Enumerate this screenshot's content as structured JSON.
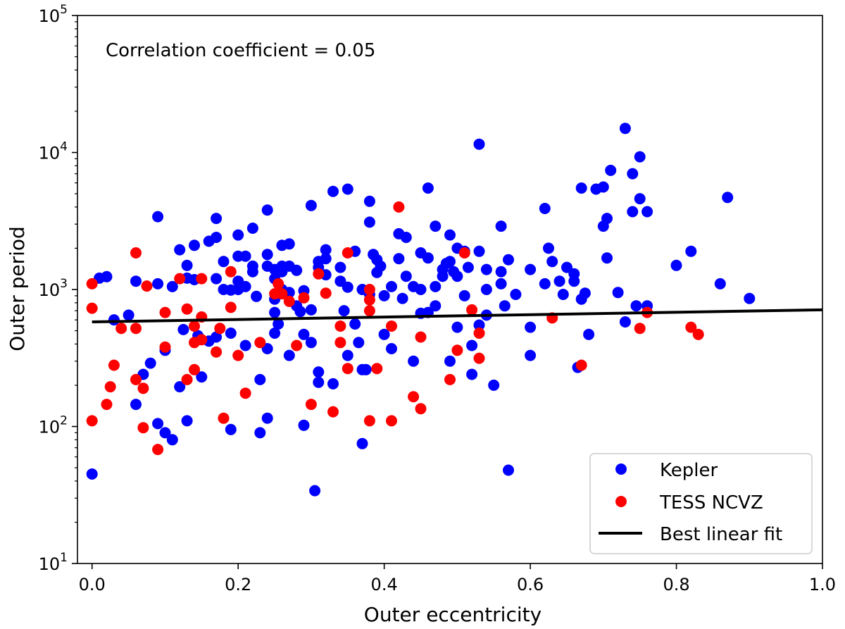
{
  "chart_data": {
    "type": "scatter",
    "title": "",
    "xlabel": "Outer eccentricity",
    "ylabel": "Outer period",
    "xlim": [
      -0.02,
      1.0
    ],
    "ylim": [
      10,
      100000
    ],
    "yscale": "log",
    "x_ticks": [
      0.0,
      0.2,
      0.4,
      0.6,
      0.8,
      1.0
    ],
    "x_tick_labels": [
      "0.0",
      "0.2",
      "0.4",
      "0.6",
      "0.8",
      "1.0"
    ],
    "y_ticks": [
      10,
      100,
      1000,
      10000,
      100000
    ],
    "y_tick_labels": [
      {
        "base": "10",
        "exp": "1"
      },
      {
        "base": "10",
        "exp": "2"
      },
      {
        "base": "10",
        "exp": "3"
      },
      {
        "base": "10",
        "exp": "4"
      },
      {
        "base": "10",
        "exp": "5"
      }
    ],
    "grid": false,
    "annotation": "Correlation coefficient = 0.05",
    "legend": {
      "placement": "lower-right",
      "entries": [
        "Kepler",
        "TESS NCVZ",
        "Best linear fit"
      ]
    },
    "colors": {
      "kepler": "#0000ff",
      "tess": "#ff0000",
      "fit": "#000000"
    },
    "series": [
      {
        "name": "Kepler",
        "marker": "circle",
        "points": [
          [
            0.0,
            45
          ],
          [
            0.01,
            1210
          ],
          [
            0.02,
            1240
          ],
          [
            0.03,
            600
          ],
          [
            0.05,
            650
          ],
          [
            0.06,
            1150
          ],
          [
            0.06,
            145
          ],
          [
            0.07,
            240
          ],
          [
            0.08,
            290
          ],
          [
            0.09,
            3400
          ],
          [
            0.09,
            1100
          ],
          [
            0.09,
            105
          ],
          [
            0.1,
            360
          ],
          [
            0.1,
            90
          ],
          [
            0.11,
            80
          ],
          [
            0.11,
            1050
          ],
          [
            0.12,
            1950
          ],
          [
            0.12,
            195
          ],
          [
            0.125,
            510
          ],
          [
            0.13,
            1500
          ],
          [
            0.13,
            1210
          ],
          [
            0.13,
            110
          ],
          [
            0.14,
            2100
          ],
          [
            0.14,
            1180
          ],
          [
            0.145,
            460
          ],
          [
            0.15,
            230
          ],
          [
            0.16,
            2250
          ],
          [
            0.16,
            420
          ],
          [
            0.17,
            3300
          ],
          [
            0.17,
            2400
          ],
          [
            0.17,
            1200
          ],
          [
            0.17,
            450
          ],
          [
            0.18,
            1600
          ],
          [
            0.18,
            1000
          ],
          [
            0.19,
            990
          ],
          [
            0.19,
            480
          ],
          [
            0.19,
            95
          ],
          [
            0.2,
            2500
          ],
          [
            0.2,
            1750
          ],
          [
            0.2,
            1150
          ],
          [
            0.2,
            1000
          ],
          [
            0.21,
            1750
          ],
          [
            0.21,
            1050
          ],
          [
            0.21,
            390
          ],
          [
            0.22,
            2800
          ],
          [
            0.22,
            1480
          ],
          [
            0.22,
            1350
          ],
          [
            0.225,
            890
          ],
          [
            0.23,
            220
          ],
          [
            0.23,
            90
          ],
          [
            0.24,
            3800
          ],
          [
            0.24,
            1800
          ],
          [
            0.24,
            1480
          ],
          [
            0.24,
            370
          ],
          [
            0.24,
            115
          ],
          [
            0.25,
            1400
          ],
          [
            0.25,
            1200
          ],
          [
            0.25,
            850
          ],
          [
            0.25,
            680
          ],
          [
            0.25,
            480
          ],
          [
            0.255,
            560
          ],
          [
            0.26,
            2100
          ],
          [
            0.26,
            1480
          ],
          [
            0.26,
            1350
          ],
          [
            0.26,
            1000
          ],
          [
            0.27,
            2150
          ],
          [
            0.27,
            1480
          ],
          [
            0.27,
            950
          ],
          [
            0.27,
            330
          ],
          [
            0.28,
            1380
          ],
          [
            0.28,
            760
          ],
          [
            0.285,
            690
          ],
          [
            0.29,
            980
          ],
          [
            0.29,
            470
          ],
          [
            0.29,
            102
          ],
          [
            0.3,
            4100
          ],
          [
            0.3,
            710
          ],
          [
            0.3,
            410
          ],
          [
            0.305,
            34
          ],
          [
            0.31,
            1600
          ],
          [
            0.31,
            1450
          ],
          [
            0.31,
            250
          ],
          [
            0.31,
            210
          ],
          [
            0.32,
            1950
          ],
          [
            0.32,
            1680
          ],
          [
            0.32,
            1280
          ],
          [
            0.33,
            5200
          ],
          [
            0.33,
            205
          ],
          [
            0.34,
            1450
          ],
          [
            0.34,
            1150
          ],
          [
            0.345,
            700
          ],
          [
            0.35,
            5400
          ],
          [
            0.35,
            1040
          ],
          [
            0.35,
            330
          ],
          [
            0.36,
            1900
          ],
          [
            0.36,
            560
          ],
          [
            0.365,
            410
          ],
          [
            0.37,
            1000
          ],
          [
            0.37,
            260
          ],
          [
            0.37,
            75
          ],
          [
            0.375,
            260
          ],
          [
            0.38,
            4400
          ],
          [
            0.38,
            3100
          ],
          [
            0.38,
            920
          ],
          [
            0.385,
            1800
          ],
          [
            0.39,
            1650
          ],
          [
            0.39,
            1330
          ],
          [
            0.395,
            1480
          ],
          [
            0.4,
            900
          ],
          [
            0.4,
            470
          ],
          [
            0.41,
            1050
          ],
          [
            0.41,
            370
          ],
          [
            0.42,
            2550
          ],
          [
            0.42,
            1680
          ],
          [
            0.425,
            860
          ],
          [
            0.43,
            2400
          ],
          [
            0.43,
            1250
          ],
          [
            0.44,
            1050
          ],
          [
            0.44,
            300
          ],
          [
            0.45,
            1850
          ],
          [
            0.45,
            1000
          ],
          [
            0.45,
            670
          ],
          [
            0.46,
            5500
          ],
          [
            0.46,
            1700
          ],
          [
            0.46,
            680
          ],
          [
            0.47,
            2900
          ],
          [
            0.47,
            1050
          ],
          [
            0.47,
            760
          ],
          [
            0.48,
            1400
          ],
          [
            0.48,
            1250
          ],
          [
            0.485,
            1550
          ],
          [
            0.49,
            2500
          ],
          [
            0.49,
            1600
          ],
          [
            0.49,
            300
          ],
          [
            0.495,
            1350
          ],
          [
            0.5,
            2000
          ],
          [
            0.5,
            1250
          ],
          [
            0.5,
            530
          ],
          [
            0.51,
            900
          ],
          [
            0.51,
            1900
          ],
          [
            0.515,
            1450
          ],
          [
            0.52,
            390
          ],
          [
            0.52,
            240
          ],
          [
            0.53,
            11500
          ],
          [
            0.53,
            1900
          ],
          [
            0.53,
            550
          ],
          [
            0.54,
            1400
          ],
          [
            0.54,
            1000
          ],
          [
            0.54,
            650
          ],
          [
            0.55,
            200
          ],
          [
            0.56,
            2900
          ],
          [
            0.56,
            1350
          ],
          [
            0.56,
            1100
          ],
          [
            0.565,
            760
          ],
          [
            0.57,
            1650
          ],
          [
            0.57,
            48
          ],
          [
            0.58,
            920
          ],
          [
            0.6,
            1400
          ],
          [
            0.6,
            530
          ],
          [
            0.6,
            330
          ],
          [
            0.62,
            3900
          ],
          [
            0.62,
            1100
          ],
          [
            0.625,
            2000
          ],
          [
            0.63,
            1600
          ],
          [
            0.64,
            1150
          ],
          [
            0.645,
            920
          ],
          [
            0.65,
            1450
          ],
          [
            0.66,
            1300
          ],
          [
            0.66,
            1150
          ],
          [
            0.665,
            270
          ],
          [
            0.67,
            5500
          ],
          [
            0.67,
            850
          ],
          [
            0.675,
            940
          ],
          [
            0.68,
            470
          ],
          [
            0.69,
            5400
          ],
          [
            0.7,
            5600
          ],
          [
            0.7,
            2900
          ],
          [
            0.705,
            3300
          ],
          [
            0.705,
            1700
          ],
          [
            0.71,
            7400
          ],
          [
            0.72,
            950
          ],
          [
            0.73,
            15000
          ],
          [
            0.73,
            580
          ],
          [
            0.74,
            7000
          ],
          [
            0.74,
            3700
          ],
          [
            0.745,
            760
          ],
          [
            0.75,
            9300
          ],
          [
            0.75,
            4600
          ],
          [
            0.76,
            3700
          ],
          [
            0.76,
            760
          ],
          [
            0.8,
            1500
          ],
          [
            0.82,
            1900
          ],
          [
            0.86,
            1100
          ],
          [
            0.87,
            4700
          ],
          [
            0.9,
            860
          ]
        ]
      },
      {
        "name": "TESS NCVZ",
        "marker": "circle",
        "points": [
          [
            0.0,
            1100
          ],
          [
            0.0,
            730
          ],
          [
            0.0,
            110
          ],
          [
            0.02,
            145
          ],
          [
            0.025,
            195
          ],
          [
            0.03,
            280
          ],
          [
            0.04,
            520
          ],
          [
            0.06,
            1850
          ],
          [
            0.06,
            520
          ],
          [
            0.06,
            220
          ],
          [
            0.07,
            190
          ],
          [
            0.07,
            98
          ],
          [
            0.075,
            1060
          ],
          [
            0.09,
            68
          ],
          [
            0.1,
            680
          ],
          [
            0.1,
            380
          ],
          [
            0.12,
            1200
          ],
          [
            0.13,
            720
          ],
          [
            0.13,
            220
          ],
          [
            0.14,
            540
          ],
          [
            0.14,
            410
          ],
          [
            0.14,
            260
          ],
          [
            0.15,
            630
          ],
          [
            0.15,
            430
          ],
          [
            0.15,
            1200
          ],
          [
            0.17,
            350
          ],
          [
            0.175,
            520
          ],
          [
            0.18,
            115
          ],
          [
            0.19,
            1350
          ],
          [
            0.19,
            740
          ],
          [
            0.2,
            330
          ],
          [
            0.21,
            175
          ],
          [
            0.23,
            410
          ],
          [
            0.25,
            930
          ],
          [
            0.255,
            1100
          ],
          [
            0.26,
            930
          ],
          [
            0.27,
            820
          ],
          [
            0.28,
            390
          ],
          [
            0.29,
            870
          ],
          [
            0.3,
            145
          ],
          [
            0.31,
            1300
          ],
          [
            0.32,
            940
          ],
          [
            0.33,
            128
          ],
          [
            0.34,
            540
          ],
          [
            0.34,
            410
          ],
          [
            0.35,
            1850
          ],
          [
            0.35,
            265
          ],
          [
            0.38,
            1000
          ],
          [
            0.38,
            840
          ],
          [
            0.38,
            700
          ],
          [
            0.38,
            110
          ],
          [
            0.39,
            265
          ],
          [
            0.41,
            540
          ],
          [
            0.41,
            110
          ],
          [
            0.42,
            4000
          ],
          [
            0.44,
            165
          ],
          [
            0.45,
            450
          ],
          [
            0.45,
            135
          ],
          [
            0.49,
            220
          ],
          [
            0.5,
            360
          ],
          [
            0.51,
            1850
          ],
          [
            0.52,
            710
          ],
          [
            0.53,
            480
          ],
          [
            0.53,
            315
          ],
          [
            0.63,
            620
          ],
          [
            0.67,
            280
          ],
          [
            0.75,
            520
          ],
          [
            0.76,
            680
          ],
          [
            0.82,
            530
          ],
          [
            0.83,
            470
          ]
        ]
      },
      {
        "name": "Best linear fit",
        "type": "line",
        "x": [
          0.0,
          1.0
        ],
        "y": [
          580,
          710
        ]
      }
    ]
  }
}
